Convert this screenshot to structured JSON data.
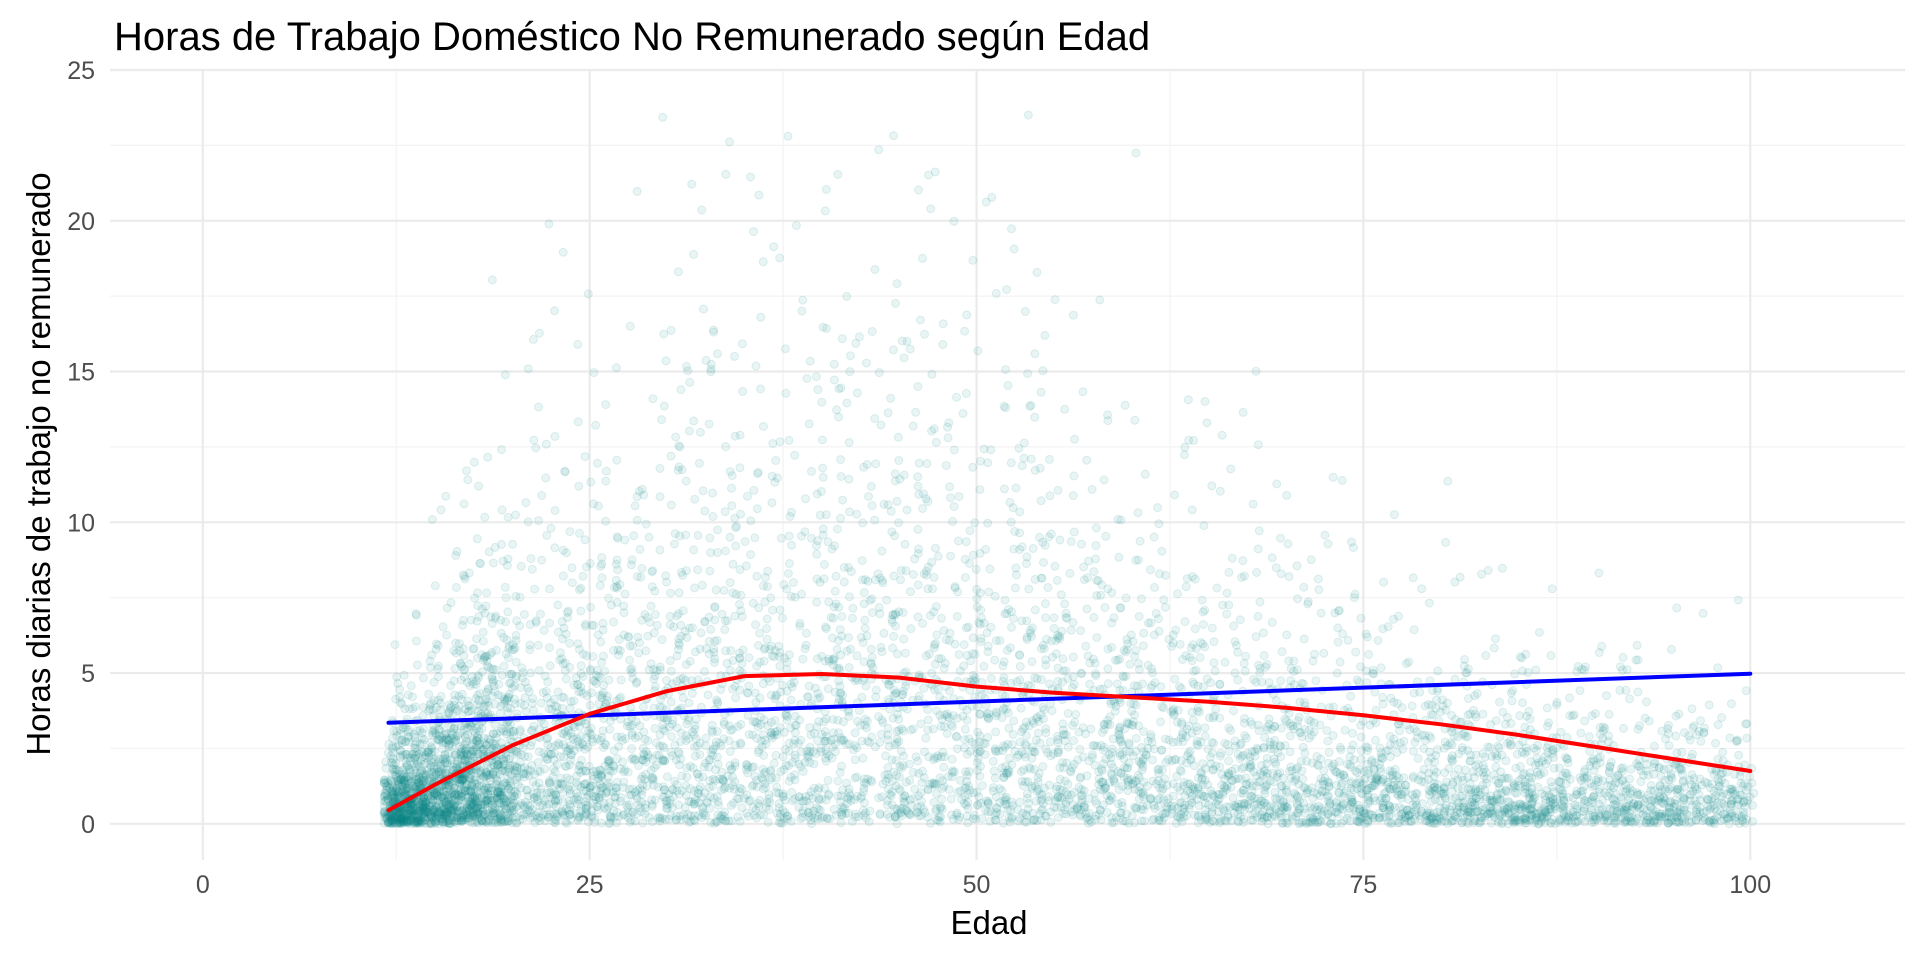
{
  "chart_data": {
    "type": "scatter",
    "title": "Horas de Trabajo Doméstico No Remunerado según Edad",
    "xlabel": "Edad",
    "ylabel": "Horas diarias de trabajo no remunerado",
    "xlim": [
      -6,
      110
    ],
    "ylim": [
      -1.2,
      25
    ],
    "x_ticks": [
      0,
      25,
      50,
      75,
      100
    ],
    "y_ticks": [
      0,
      5,
      10,
      15,
      20,
      25
    ],
    "grid": true,
    "legend": "none",
    "colors": {
      "points": "#0e8a8a",
      "linear_fit": "#0000ff",
      "smooth_fit": "#ff0000"
    },
    "series": [
      {
        "type": "line",
        "fit": "linear",
        "x": [
          12,
          100
        ],
        "y": [
          3.35,
          4.98
        ]
      },
      {
        "type": "line",
        "fit": "loess",
        "x": [
          12,
          15,
          20,
          25,
          30,
          35,
          40,
          45,
          50,
          55,
          60,
          65,
          70,
          75,
          80,
          85,
          90,
          95,
          100
        ],
        "y": [
          0.45,
          1.3,
          2.6,
          3.65,
          4.4,
          4.9,
          4.97,
          4.85,
          4.55,
          4.35,
          4.2,
          4.05,
          3.85,
          3.6,
          3.3,
          2.95,
          2.55,
          2.15,
          1.75
        ]
      }
    ]
  }
}
